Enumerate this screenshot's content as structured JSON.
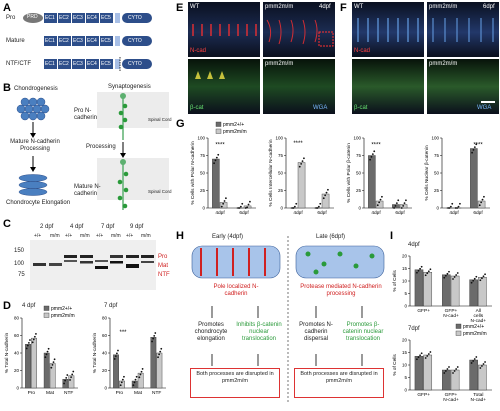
{
  "panels": {
    "A": "A",
    "B": "B",
    "C": "C",
    "D": "D",
    "E": "E",
    "F": "F",
    "G": "G",
    "H": "H",
    "I": "I"
  },
  "panelA": {
    "rows": [
      "Pro",
      "Mature",
      "NTF/CTF"
    ],
    "prd": "PRD",
    "domains": [
      "EC1",
      "EC2",
      "EC3",
      "EC4",
      "EC5"
    ],
    "cyto": "CYTO"
  },
  "panelB": {
    "left_top": "Chondrogenesis",
    "left_mid": "Mature N-cadherin Processing",
    "left_bottom": "Chondrocyte Elongation",
    "right_top": "Synaptogenesis",
    "pro_label": "Pro N-cadherin",
    "processing": "Processing",
    "mature_label": "Mature N-cadherin",
    "spinal_cord": "Spinal Cord"
  },
  "panelC": {
    "timepoints": [
      "2 dpf",
      "4 dpf",
      "7 dpf",
      "9 dpf"
    ],
    "genotypes": [
      "+/+",
      "m/m",
      "+/+",
      "m/m",
      "+/+",
      "m/m",
      "+/+",
      "m/m"
    ],
    "mw": [
      "150",
      "100",
      "75"
    ],
    "band_labels": [
      "Pro",
      "Mat",
      "NTF"
    ]
  },
  "panelD": {
    "left_title": "4 dpf",
    "right_title": "7 dpf",
    "ylabel": "% Total N-cadherin",
    "legend": [
      "pmm2+/+",
      "pmm2m/m"
    ],
    "sig": "***"
  },
  "chart_data": [
    {
      "type": "bar",
      "title": "4 dpf",
      "categories": [
        "Pro",
        "Mat",
        "NTF"
      ],
      "ylabel": "% Total N-cadherin",
      "ylim": [
        0,
        80
      ],
      "series": [
        {
          "name": "pmm2+/+",
          "values": [
            50,
            40,
            10
          ]
        },
        {
          "name": "pmm2m/m",
          "values": [
            57,
            28,
            14
          ]
        }
      ]
    },
    {
      "type": "bar",
      "title": "7 dpf",
      "categories": [
        "Pro",
        "Mat",
        "NTF"
      ],
      "ylabel": "% Total N-cadherin",
      "ylim": [
        0,
        80
      ],
      "series": [
        {
          "name": "pmm2+/+",
          "values": [
            38,
            8,
            58
          ]
        },
        {
          "name": "pmm2m/m",
          "values": [
            8,
            17,
            40
          ]
        }
      ]
    },
    {
      "type": "bar",
      "categories": [
        "4dpf",
        "6dpf"
      ],
      "ylabel": "% Cells with Polar N-cadherin",
      "ylim": [
        0,
        100
      ],
      "series": [
        {
          "name": "pmm2+/+",
          "values": [
            70,
            0
          ]
        },
        {
          "name": "pmm2m/m",
          "values": [
            8,
            3
          ]
        }
      ]
    },
    {
      "type": "bar",
      "categories": [
        "4dpf",
        "6dpf"
      ],
      "ylabel": "% Cells Intercellular N-cadherin",
      "ylim": [
        0,
        100
      ],
      "series": [
        {
          "name": "pmm2+/+",
          "values": [
            0,
            0
          ]
        },
        {
          "name": "pmm2m/m",
          "values": [
            65,
            20
          ]
        }
      ]
    },
    {
      "type": "bar",
      "categories": [
        "4dpf",
        "6dpf"
      ],
      "ylabel": "% Cells with Polar β-catenin",
      "ylim": [
        0,
        100
      ],
      "series": [
        {
          "name": "pmm2+/+",
          "values": [
            75,
            5
          ]
        },
        {
          "name": "pmm2m/m",
          "values": [
            10,
            5
          ]
        }
      ]
    },
    {
      "type": "bar",
      "categories": [
        "4dpf",
        "6dpf"
      ],
      "ylabel": "% Cells Nuclear β-catenin",
      "ylim": [
        0,
        100
      ],
      "series": [
        {
          "name": "pmm2+/+",
          "values": [
            0,
            85
          ]
        },
        {
          "name": "pmm2m/m",
          "values": [
            0,
            10
          ]
        }
      ]
    },
    {
      "type": "bar",
      "title": "4dpf",
      "categories": [
        "GFP+",
        "GFP+ N-cad+",
        "All cells N-cad+"
      ],
      "ylabel": "% of Cells",
      "ylim": [
        0,
        20
      ],
      "series": [
        {
          "name": "pmm2+/+",
          "values": [
            14.5,
            12.5,
            10.5
          ]
        },
        {
          "name": "pmm2m/m",
          "values": [
            13.5,
            12,
            11.5
          ]
        }
      ]
    },
    {
      "type": "bar",
      "title": "7dpf",
      "categories": [
        "GFP+",
        "GFP+ N-cad+",
        "Total N-cad+"
      ],
      "ylabel": "% of Cells",
      "ylim": [
        0,
        20
      ],
      "series": [
        {
          "name": "pmm2+/+",
          "values": [
            13.5,
            8,
            12
          ]
        },
        {
          "name": "pmm2m/m",
          "values": [
            14,
            8,
            10
          ]
        }
      ]
    }
  ],
  "panelE": {
    "wt": "WT",
    "mut": "pmm2m/m",
    "dpf": "4dpf",
    "ncad": "N-cad",
    "wga": "WGA",
    "bcat": "β-cat"
  },
  "panelF": {
    "wt": "WT",
    "mut": "pmm2m/m",
    "dpf": "6dpf",
    "ncad": "N-cad",
    "wga": "WGA",
    "bcat": "β-cat"
  },
  "panelG": {
    "legend": [
      "pmm2+/+",
      "pmm2m/m"
    ],
    "sig": "****",
    "ylabels": [
      "% Cells with Polar N-cadherin",
      "% Cells Intercellular N-cadherin",
      "% Cells with Polar β-catenin",
      "% Cells Nuclear β-catenin"
    ]
  },
  "panelH": {
    "early": "Early (4dpf)",
    "late": "Late (6dpf)",
    "early_red": "Pole localized N-cadherin",
    "late_red": "Protease mediated N-cadherin processing",
    "e1": "Promotes chondrocyte elongation",
    "e2": "Inhibits β-catenin nuclear translocation",
    "l1": "Promotes N-cadherin dispersal",
    "l2": "Promotes β-catenin nuclear translocation",
    "box_text": "Both processes are disrupted in pmm2m/m"
  },
  "panelI": {
    "top_title": "4dpf",
    "bottom_title": "7dpf",
    "ylabel": "% of Cells",
    "legend": [
      "pmm2+/+",
      "pmm2m/m"
    ]
  },
  "colors": {
    "wt_bar": "#6b6b6b",
    "mut_bar": "#c8c8c8",
    "red": "#d02020",
    "green": "#2a9a3a",
    "blue": "#4a7fc0"
  }
}
